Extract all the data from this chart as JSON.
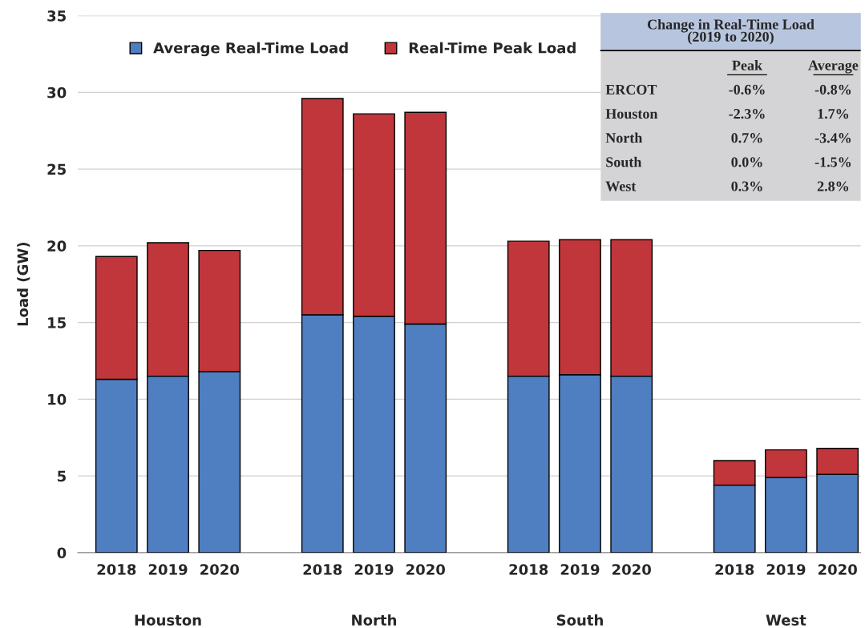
{
  "chart_data": {
    "type": "bar",
    "stacked": true,
    "ylabel": "Load (GW)",
    "categories": [
      "2018",
      "2019",
      "2020",
      "2018",
      "2019",
      "2020",
      "2018",
      "2019",
      "2020",
      "2018",
      "2019",
      "2020"
    ],
    "series": [
      {
        "name": "Average Real-Time Load",
        "color": "#4f7fc0",
        "values": [
          11.3,
          11.5,
          11.8,
          15.5,
          15.4,
          14.9,
          11.5,
          11.6,
          11.5,
          4.4,
          4.9,
          5.1
        ]
      },
      {
        "name": "Real-Time Peak Load",
        "color": "#c1363b",
        "values": [
          8.0,
          8.7,
          7.9,
          14.1,
          13.2,
          13.8,
          8.8,
          8.8,
          8.9,
          1.6,
          1.8,
          1.7
        ]
      }
    ],
    "ylim": [
      0,
      35
    ],
    "yticks": [
      0,
      5,
      10,
      15,
      20,
      25,
      30,
      35
    ],
    "grid": "y",
    "legend": "top",
    "annotations": [
      "Houston",
      "North",
      "South",
      "West",
      "Change in Real-Time Load\n(2019 to 2020)",
      "Peak",
      "Average",
      "ERCOT",
      "-0.6%",
      "-0.8%",
      "Houston",
      "-2.3%",
      "1.7%",
      "North",
      "0.7%",
      "-3.4%",
      "South",
      "0.0%",
      "-1.5%",
      "West",
      "0.3%",
      "2.8%"
    ]
  }
}
